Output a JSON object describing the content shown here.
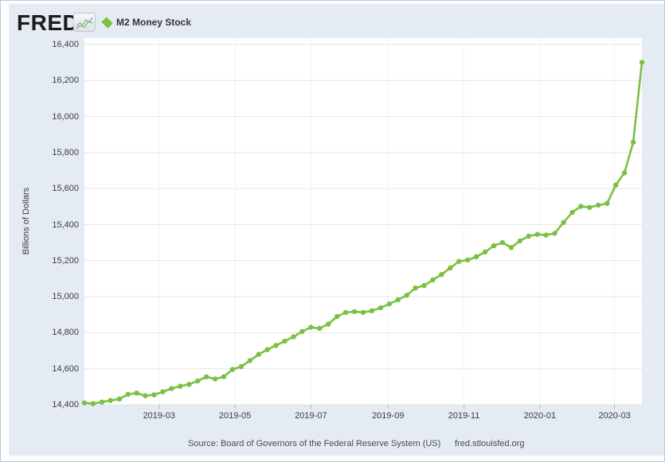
{
  "header": {
    "logo_text": "FRED",
    "legend": {
      "marker": "diamond",
      "marker_color": "#7ac143",
      "label": "M2 Money Stock"
    }
  },
  "footer": {
    "source": "Source: Board of Governors of the Federal Reserve System (US)",
    "site": "fred.stlouisfed.org"
  },
  "colors": {
    "canvas_bg": "#e4ebf3",
    "plot_bg": "#ffffff",
    "gridline": "#e6e6e6",
    "vgridline": "#f0f3f5",
    "tick": "#aab4bc",
    "line": "#7ac143",
    "text": "#3c3c3c"
  },
  "chart_data": {
    "type": "line",
    "title": "M2 Money Stock",
    "ylabel": "Billions of Dollars",
    "xlabel": "",
    "ylim": [
      14400,
      16400
    ],
    "y_ticks": [
      14400,
      14600,
      14800,
      15000,
      15200,
      15400,
      15600,
      15800,
      16000,
      16200,
      16400
    ],
    "grid": true,
    "legend_position": "top-left",
    "marker": "circle",
    "frequency": "weekly",
    "x_range": [
      "2018-12-31",
      "2020-03-23"
    ],
    "x_ticks": [
      {
        "label": "2019-03",
        "date": "2019-03-01"
      },
      {
        "label": "2019-05",
        "date": "2019-05-01"
      },
      {
        "label": "2019-07",
        "date": "2019-07-01"
      },
      {
        "label": "2019-09",
        "date": "2019-09-01"
      },
      {
        "label": "2019-11",
        "date": "2019-11-01"
      },
      {
        "label": "2020-01",
        "date": "2020-01-01"
      },
      {
        "label": "2020-03",
        "date": "2020-03-01"
      }
    ],
    "series": [
      {
        "name": "M2 Money Stock",
        "color": "#7ac143",
        "dates": [
          "2018-12-31",
          "2019-01-07",
          "2019-01-14",
          "2019-01-21",
          "2019-01-28",
          "2019-02-04",
          "2019-02-11",
          "2019-02-18",
          "2019-02-25",
          "2019-03-04",
          "2019-03-11",
          "2019-03-18",
          "2019-03-25",
          "2019-04-01",
          "2019-04-08",
          "2019-04-15",
          "2019-04-22",
          "2019-04-29",
          "2019-05-06",
          "2019-05-13",
          "2019-05-20",
          "2019-05-27",
          "2019-06-03",
          "2019-06-10",
          "2019-06-17",
          "2019-06-24",
          "2019-07-01",
          "2019-07-08",
          "2019-07-15",
          "2019-07-22",
          "2019-07-29",
          "2019-08-05",
          "2019-08-12",
          "2019-08-19",
          "2019-08-26",
          "2019-09-02",
          "2019-09-09",
          "2019-09-16",
          "2019-09-23",
          "2019-09-30",
          "2019-10-07",
          "2019-10-14",
          "2019-10-21",
          "2019-10-28",
          "2019-11-04",
          "2019-11-11",
          "2019-11-18",
          "2019-11-25",
          "2019-12-02",
          "2019-12-09",
          "2019-12-16",
          "2019-12-23",
          "2019-12-30",
          "2020-01-06",
          "2020-01-13",
          "2020-01-20",
          "2020-01-27",
          "2020-02-03",
          "2020-02-10",
          "2020-02-17",
          "2020-02-24",
          "2020-03-02",
          "2020-03-09",
          "2020-03-16",
          "2020-03-23"
        ],
        "values": [
          14410,
          14406,
          14415,
          14424,
          14432,
          14458,
          14465,
          14450,
          14455,
          14472,
          14490,
          14503,
          14513,
          14532,
          14555,
          14543,
          14556,
          14596,
          14612,
          14645,
          14680,
          14706,
          14730,
          14753,
          14777,
          14807,
          14830,
          14824,
          14848,
          14890,
          14912,
          14917,
          14913,
          14922,
          14938,
          14960,
          14983,
          15008,
          15048,
          15062,
          15093,
          15123,
          15160,
          15196,
          15204,
          15222,
          15248,
          15283,
          15300,
          15273,
          15310,
          15336,
          15346,
          15342,
          15352,
          15412,
          15468,
          15502,
          15496,
          15508,
          15518,
          15620,
          15688,
          15858,
          16301
        ]
      }
    ]
  }
}
